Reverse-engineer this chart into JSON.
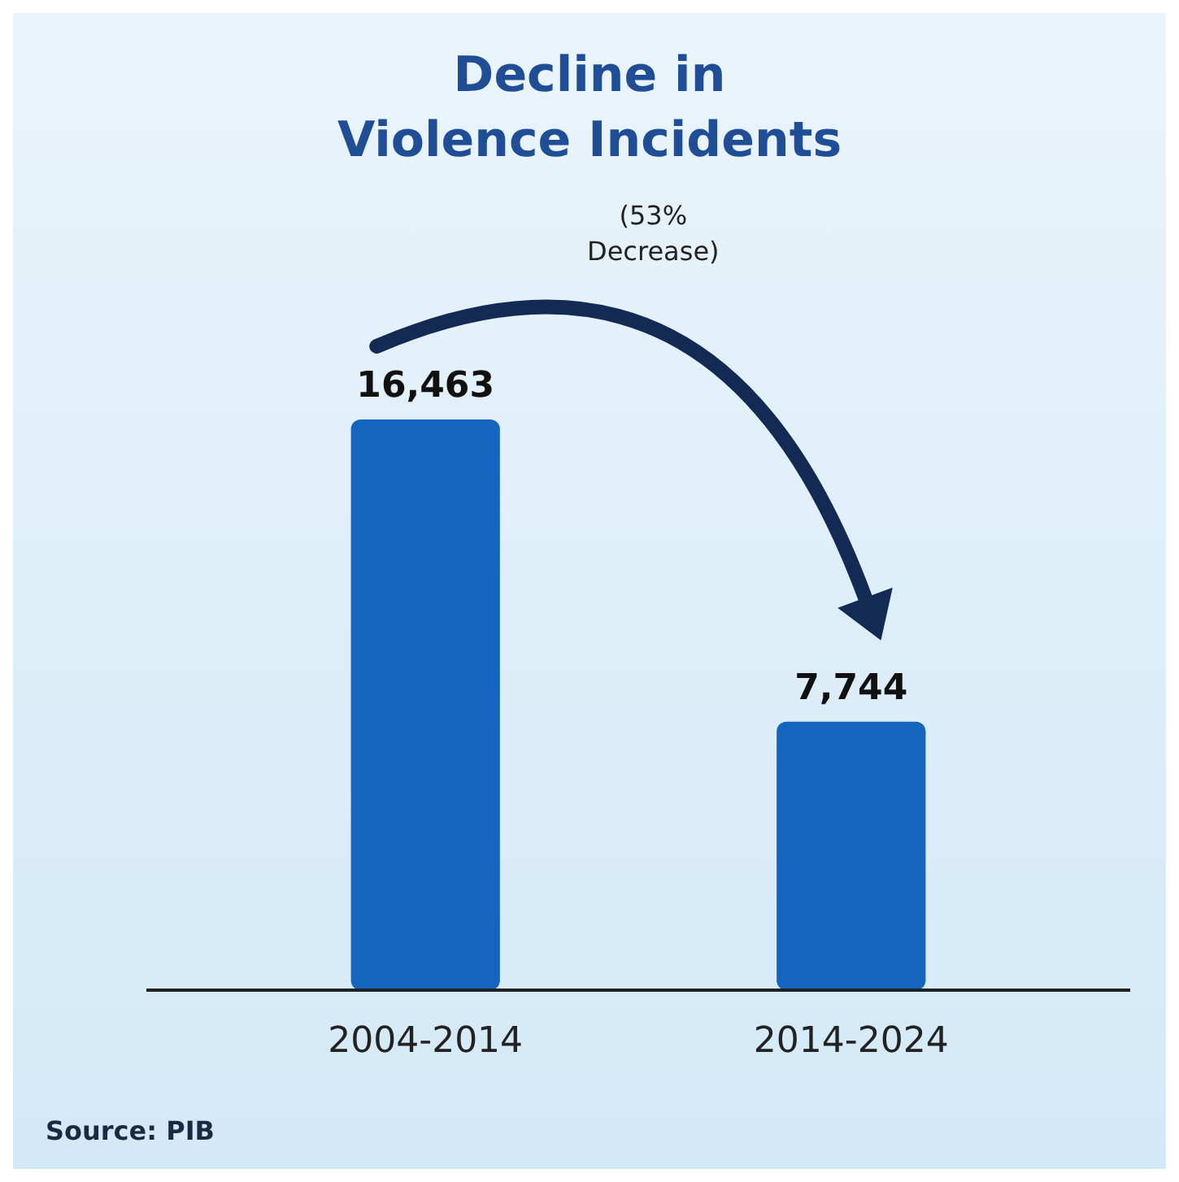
{
  "chart_data": {
    "type": "bar",
    "title": "Decline in\nViolence Incidents",
    "categories": [
      "2004-2014",
      "2014-2024"
    ],
    "values": [
      16463,
      7744
    ],
    "color": "#1565c0",
    "data_labels": true,
    "value_labels": [
      "16,463",
      "7,744"
    ],
    "annotations": [
      "(53%\nDecrease)",
      "Source: PIB"
    ]
  }
}
